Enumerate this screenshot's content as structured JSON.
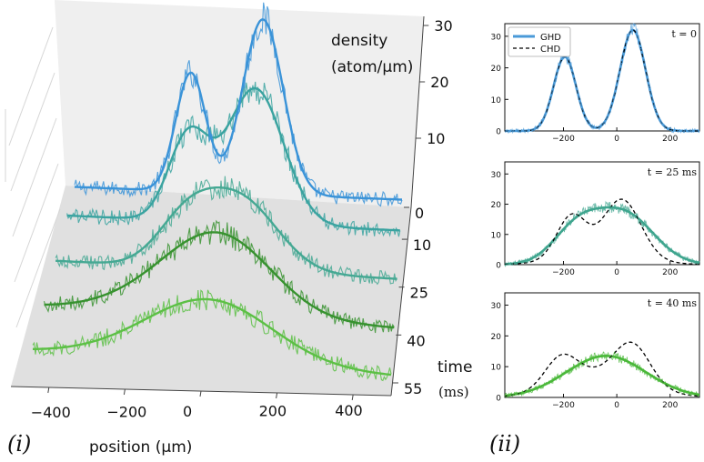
{
  "panel_labels": {
    "left": "(i)",
    "right": "(ii)"
  },
  "chart_data": [
    {
      "type": "line",
      "subtype": "3d-waterfall",
      "panel": "(i)",
      "xlabel": "position (μm)",
      "xticks": [
        -400,
        -200,
        0,
        200,
        400
      ],
      "xlim": [
        -500,
        500
      ],
      "zlabel_line1": "density",
      "zlabel_line2": "(atom/μm)",
      "zticks": [
        10,
        20,
        30
      ],
      "ylabel_line1": "time",
      "ylabel_line2": "(ms)",
      "time_ticks": [
        0,
        10,
        25,
        40,
        55
      ],
      "series": [
        {
          "time": 0,
          "color": "#3a93d8",
          "peaks": [
            {
              "x": -145,
              "h": 21,
              "w": 46
            },
            {
              "x": 75,
              "h": 31,
              "w": 62
            }
          ],
          "base": 0.4
        },
        {
          "time": 10,
          "color": "#3aa3a0",
          "peaks": [
            {
              "x": -135,
              "h": 15,
              "w": 60
            },
            {
              "x": 65,
              "h": 24,
              "w": 85
            }
          ],
          "base": 0.6
        },
        {
          "time": 25,
          "color": "#45a893",
          "peaks": [
            {
              "x": -120,
              "h": 7.5,
              "w": 85
            },
            {
              "x": 40,
              "h": 12.5,
              "w": 110
            }
          ],
          "base": 0.5
        },
        {
          "time": 40,
          "color": "#37922f",
          "peaks": [
            {
              "x": -60,
              "h": 7.5,
              "w": 175
            },
            {
              "x": 20,
              "h": 8,
              "w": 140
            }
          ],
          "base": 0.3
        },
        {
          "time": 55,
          "color": "#5cc045",
          "peaks": [
            {
              "x": -40,
              "h": 6.5,
              "w": 190
            },
            {
              "x": 20,
              "h": 5,
              "w": 160
            }
          ],
          "base": 0.3
        }
      ]
    },
    {
      "type": "line",
      "panel": "(ii)",
      "label": "t = 0",
      "xticks": [
        -200,
        0,
        200
      ],
      "xlim": [
        -420,
        310
      ],
      "yticks": [
        0,
        10,
        20,
        30
      ],
      "ylim": [
        0,
        34
      ],
      "legend": {
        "position": "top-left",
        "entries": [
          "GHD",
          "CHD"
        ]
      },
      "series": [
        {
          "name": "GHD",
          "color": "#4a9ad8",
          "style": "solid",
          "peaks": [
            {
              "x": -195,
              "h": 23.5,
              "w": 42
            },
            {
              "x": 60,
              "h": 32,
              "w": 48
            }
          ],
          "base": 0
        },
        {
          "name": "CHD",
          "color": "#000000",
          "style": "dashed",
          "peaks": [
            {
              "x": -195,
              "h": 23.5,
              "w": 42
            },
            {
              "x": 60,
              "h": 32,
              "w": 48
            }
          ],
          "base": 0
        },
        {
          "name": "data",
          "color": "#4a9ad8",
          "style": "noisy",
          "peaks": [
            {
              "x": -195,
              "h": 23.5,
              "w": 42
            },
            {
              "x": 60,
              "h": 32,
              "w": 48
            }
          ],
          "base": 0.5
        }
      ]
    },
    {
      "type": "line",
      "panel": "(ii)",
      "label": "t = 25 ms",
      "xticks": [
        -200,
        0,
        200
      ],
      "xlim": [
        -420,
        310
      ],
      "yticks": [
        0,
        10,
        20,
        30
      ],
      "ylim": [
        0,
        34
      ],
      "series": [
        {
          "name": "GHD",
          "color": "#3fa58e",
          "style": "solid",
          "peaks": [
            {
              "x": -150,
              "h": 11.5,
              "w": 90
            },
            {
              "x": 30,
              "h": 16.5,
              "w": 110
            }
          ],
          "base": 0
        },
        {
          "name": "CHD",
          "color": "#000000",
          "style": "dashed",
          "peaks": [
            {
              "x": -170,
              "h": 14,
              "w": 55
            },
            {
              "x": 20,
              "h": 19,
              "w": 70
            },
            {
              "x": -60,
              "h": 3,
              "w": 150
            }
          ],
          "base": 0
        },
        {
          "name": "data",
          "color": "#3fa58e",
          "style": "noisy",
          "peaks": [
            {
              "x": -150,
              "h": 11.5,
              "w": 90
            },
            {
              "x": 30,
              "h": 16.5,
              "w": 110
            }
          ],
          "base": 0.5
        }
      ]
    },
    {
      "type": "line",
      "panel": "(ii)",
      "label": "t = 40 ms",
      "xticks": [
        -200,
        0,
        200
      ],
      "xlim": [
        -420,
        310
      ],
      "yticks": [
        0,
        10,
        20,
        30
      ],
      "ylim": [
        0,
        34
      ],
      "series": [
        {
          "name": "GHD",
          "color": "#4ab83a",
          "style": "solid",
          "peaks": [
            {
              "x": -40,
              "h": 13.5,
              "w": 150
            }
          ],
          "base": 0
        },
        {
          "name": "CHD",
          "color": "#000000",
          "style": "dashed",
          "peaks": [
            {
              "x": -210,
              "h": 9,
              "w": 60
            },
            {
              "x": 60,
              "h": 12,
              "w": 65
            },
            {
              "x": -60,
              "h": 8,
              "w": 150
            }
          ],
          "base": 0
        },
        {
          "name": "data",
          "color": "#4ab83a",
          "style": "noisy",
          "peaks": [
            {
              "x": -40,
              "h": 13.5,
              "w": 150
            }
          ],
          "base": 0.5
        }
      ]
    }
  ]
}
